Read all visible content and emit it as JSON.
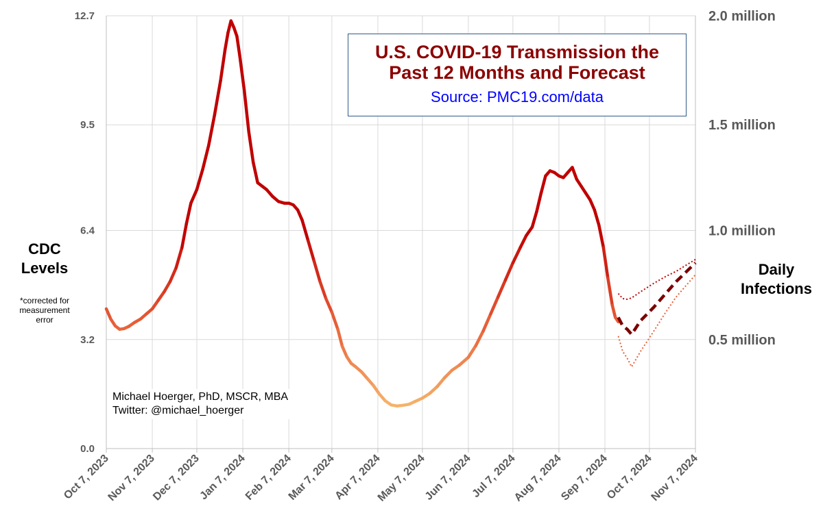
{
  "chart_data": {
    "type": "line",
    "title_lines": [
      "U.S. COVID-19 Transmission the",
      "Past 12 Months and Forecast"
    ],
    "subtitle": "Source: PMC19.com/data",
    "ylabel_left_lines": [
      "CDC",
      "Levels"
    ],
    "ylabel_left_note_lines": [
      "*corrected for",
      "measurement",
      "error"
    ],
    "ylabel_right_lines": [
      "Daily",
      "Infections"
    ],
    "credit_lines": [
      "Michael Hoerger, PhD, MSCR, MBA",
      "Twitter: @michael_hoerger"
    ],
    "x_axis": {
      "start": "2023-10-07",
      "end": "2024-11-07",
      "ticks": [
        "2023-10-07",
        "2023-11-07",
        "2023-12-07",
        "2024-01-07",
        "2024-02-07",
        "2024-03-07",
        "2024-04-07",
        "2024-05-07",
        "2024-06-07",
        "2024-07-07",
        "2024-08-07",
        "2024-09-07",
        "2024-10-07",
        "2024-11-07"
      ],
      "tick_labels": [
        "Oct 7, 2023",
        "Nov 7, 2023",
        "Dec 7, 2023",
        "Jan 7, 2024",
        "Feb 7, 2024",
        "Mar 7, 2024",
        "Apr 7, 2024",
        "May 7, 2024",
        "Jun 7, 2024",
        "Jul 7, 2024",
        "Aug 7, 2024",
        "Sep 7, 2024",
        "Oct 7, 2024",
        "Nov 7, 2024"
      ]
    },
    "y_left": {
      "ylim": [
        0,
        12.7
      ],
      "ticks": [
        0,
        3.2,
        6.4,
        9.5,
        12.7
      ],
      "tick_labels": [
        "0.0",
        "3.2",
        "6.4",
        "9.5",
        "12.7"
      ]
    },
    "y_right": {
      "ticks": [
        3.2,
        6.4,
        9.5,
        12.7
      ],
      "tick_labels": [
        "0.5 million",
        "1.0 million",
        "1.5 million",
        "2.0 million"
      ]
    },
    "grid": "vertical at month ticks, horizontal at y ticks",
    "colors": {
      "high": "#c00000",
      "mid": "#e8623a",
      "low": "#f5b26b",
      "forecast": "#7b0000",
      "title": "#8b0000",
      "source": "#0000ff",
      "box_border": "#2e5a8a",
      "grid": "#d9d9d9"
    },
    "series": [
      {
        "style": "solid-gradient",
        "points": [
          [
            "2023-10-07",
            4.1
          ],
          [
            "2023-10-10",
            3.8
          ],
          [
            "2023-10-13",
            3.6
          ],
          [
            "2023-10-16",
            3.5
          ],
          [
            "2023-10-19",
            3.52
          ],
          [
            "2023-10-22",
            3.58
          ],
          [
            "2023-10-26",
            3.7
          ],
          [
            "2023-10-30",
            3.8
          ],
          [
            "2023-11-03",
            3.95
          ],
          [
            "2023-11-07",
            4.1
          ],
          [
            "2023-11-11",
            4.35
          ],
          [
            "2023-11-15",
            4.6
          ],
          [
            "2023-11-19",
            4.9
          ],
          [
            "2023-11-23",
            5.3
          ],
          [
            "2023-11-27",
            5.9
          ],
          [
            "2023-11-30",
            6.6
          ],
          [
            "2023-12-03",
            7.2
          ],
          [
            "2023-12-07",
            7.6
          ],
          [
            "2023-12-11",
            8.2
          ],
          [
            "2023-12-15",
            8.9
          ],
          [
            "2023-12-19",
            9.8
          ],
          [
            "2023-12-23",
            10.8
          ],
          [
            "2023-12-26",
            11.7
          ],
          [
            "2023-12-28",
            12.2
          ],
          [
            "2023-12-30",
            12.55
          ],
          [
            "2024-01-01",
            12.35
          ],
          [
            "2024-01-03",
            12.1
          ],
          [
            "2024-01-05",
            11.5
          ],
          [
            "2024-01-08",
            10.5
          ],
          [
            "2024-01-11",
            9.3
          ],
          [
            "2024-01-14",
            8.4
          ],
          [
            "2024-01-17",
            7.8
          ],
          [
            "2024-01-20",
            7.7
          ],
          [
            "2024-01-23",
            7.6
          ],
          [
            "2024-01-27",
            7.4
          ],
          [
            "2024-01-31",
            7.25
          ],
          [
            "2024-02-04",
            7.2
          ],
          [
            "2024-02-07",
            7.2
          ],
          [
            "2024-02-10",
            7.15
          ],
          [
            "2024-02-13",
            7.0
          ],
          [
            "2024-02-16",
            6.7
          ],
          [
            "2024-02-20",
            6.1
          ],
          [
            "2024-02-24",
            5.5
          ],
          [
            "2024-02-28",
            4.9
          ],
          [
            "2024-03-03",
            4.4
          ],
          [
            "2024-03-07",
            4.0
          ],
          [
            "2024-03-11",
            3.5
          ],
          [
            "2024-03-14",
            3.0
          ],
          [
            "2024-03-17",
            2.7
          ],
          [
            "2024-03-20",
            2.5
          ],
          [
            "2024-03-23",
            2.4
          ],
          [
            "2024-03-27",
            2.25
          ],
          [
            "2024-03-31",
            2.05
          ],
          [
            "2024-04-04",
            1.85
          ],
          [
            "2024-04-08",
            1.6
          ],
          [
            "2024-04-12",
            1.4
          ],
          [
            "2024-04-16",
            1.28
          ],
          [
            "2024-04-20",
            1.25
          ],
          [
            "2024-04-24",
            1.27
          ],
          [
            "2024-04-28",
            1.3
          ],
          [
            "2024-05-02",
            1.38
          ],
          [
            "2024-05-07",
            1.48
          ],
          [
            "2024-05-12",
            1.62
          ],
          [
            "2024-05-17",
            1.82
          ],
          [
            "2024-05-22",
            2.08
          ],
          [
            "2024-05-27",
            2.3
          ],
          [
            "2024-06-01",
            2.45
          ],
          [
            "2024-06-07",
            2.68
          ],
          [
            "2024-06-12",
            3.02
          ],
          [
            "2024-06-17",
            3.45
          ],
          [
            "2024-06-22",
            3.95
          ],
          [
            "2024-06-27",
            4.45
          ],
          [
            "2024-07-02",
            4.95
          ],
          [
            "2024-07-07",
            5.45
          ],
          [
            "2024-07-12",
            5.9
          ],
          [
            "2024-07-16",
            6.25
          ],
          [
            "2024-07-20",
            6.5
          ],
          [
            "2024-07-23",
            6.95
          ],
          [
            "2024-07-26",
            7.5
          ],
          [
            "2024-07-29",
            8.0
          ],
          [
            "2024-08-01",
            8.15
          ],
          [
            "2024-08-04",
            8.1
          ],
          [
            "2024-08-07",
            8.0
          ],
          [
            "2024-08-10",
            7.95
          ],
          [
            "2024-08-13",
            8.1
          ],
          [
            "2024-08-16",
            8.25
          ],
          [
            "2024-08-19",
            7.9
          ],
          [
            "2024-08-22",
            7.7
          ],
          [
            "2024-08-25",
            7.5
          ],
          [
            "2024-08-28",
            7.3
          ],
          [
            "2024-08-31",
            7.0
          ],
          [
            "2024-09-03",
            6.55
          ],
          [
            "2024-09-06",
            5.9
          ],
          [
            "2024-09-09",
            5.0
          ],
          [
            "2024-09-12",
            4.2
          ],
          [
            "2024-09-14",
            3.85
          ],
          [
            "2024-09-16",
            3.72
          ]
        ]
      },
      {
        "style": "dashed-forecast",
        "points": [
          [
            "2024-09-16",
            3.85
          ],
          [
            "2024-09-19",
            3.6
          ],
          [
            "2024-09-22",
            3.5
          ],
          [
            "2024-09-25",
            3.35
          ],
          [
            "2024-10-01",
            3.75
          ],
          [
            "2024-10-10",
            4.15
          ],
          [
            "2024-10-18",
            4.55
          ],
          [
            "2024-10-25",
            4.9
          ],
          [
            "2024-11-07",
            5.45
          ]
        ]
      },
      {
        "style": "dotted-upper",
        "points": [
          [
            "2024-09-16",
            4.55
          ],
          [
            "2024-09-19",
            4.4
          ],
          [
            "2024-09-22",
            4.38
          ],
          [
            "2024-09-25",
            4.42
          ],
          [
            "2024-10-01",
            4.6
          ],
          [
            "2024-10-10",
            4.85
          ],
          [
            "2024-10-18",
            5.05
          ],
          [
            "2024-10-25",
            5.2
          ],
          [
            "2024-11-07",
            5.55
          ]
        ]
      },
      {
        "style": "dotted-lower",
        "points": [
          [
            "2024-09-16",
            3.3
          ],
          [
            "2024-09-19",
            2.85
          ],
          [
            "2024-09-22",
            2.65
          ],
          [
            "2024-09-25",
            2.4
          ],
          [
            "2024-10-01",
            2.85
          ],
          [
            "2024-10-10",
            3.45
          ],
          [
            "2024-10-18",
            4.0
          ],
          [
            "2024-10-25",
            4.45
          ],
          [
            "2024-11-07",
            5.1
          ]
        ]
      }
    ]
  }
}
